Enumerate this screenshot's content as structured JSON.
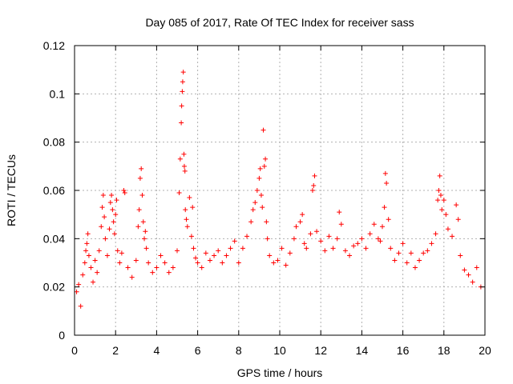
{
  "chart_data": {
    "type": "scatter",
    "title": "Day 085 of 2017, Rate Of TEC Index for receiver sass",
    "xlabel": "GPS time / hours",
    "ylabel": "ROTI / TECUs",
    "xlim": [
      0,
      20
    ],
    "ylim": [
      0,
      0.12
    ],
    "xticks": [
      0,
      2,
      4,
      6,
      8,
      10,
      12,
      14,
      16,
      18,
      20
    ],
    "yticks": [
      0,
      0.02,
      0.04,
      0.06,
      0.08,
      0.1,
      0.12
    ],
    "xtick_labels": [
      "0",
      "2",
      "4",
      "6",
      "8",
      "10",
      "12",
      "14",
      "16",
      "18",
      "20"
    ],
    "ytick_labels": [
      "0",
      "0.02",
      "0.04",
      "0.06",
      "0.08",
      "0.1",
      "0.12"
    ],
    "grid": true,
    "marker": "+",
    "color": "#ff0000",
    "series": [
      {
        "name": "ROTI",
        "points": [
          [
            0.1,
            0.018
          ],
          [
            0.2,
            0.021
          ],
          [
            0.3,
            0.012
          ],
          [
            0.4,
            0.025
          ],
          [
            0.5,
            0.03
          ],
          [
            0.55,
            0.035
          ],
          [
            0.6,
            0.038
          ],
          [
            0.65,
            0.042
          ],
          [
            0.7,
            0.033
          ],
          [
            0.8,
            0.028
          ],
          [
            0.9,
            0.022
          ],
          [
            1.0,
            0.031
          ],
          [
            1.1,
            0.026
          ],
          [
            1.2,
            0.035
          ],
          [
            1.3,
            0.045
          ],
          [
            1.35,
            0.053
          ],
          [
            1.4,
            0.058
          ],
          [
            1.45,
            0.049
          ],
          [
            1.5,
            0.04
          ],
          [
            1.6,
            0.033
          ],
          [
            1.7,
            0.044
          ],
          [
            1.75,
            0.055
          ],
          [
            1.8,
            0.058
          ],
          [
            1.85,
            0.052
          ],
          [
            1.9,
            0.047
          ],
          [
            1.95,
            0.042
          ],
          [
            2.0,
            0.05
          ],
          [
            2.05,
            0.056
          ],
          [
            2.1,
            0.035
          ],
          [
            2.2,
            0.03
          ],
          [
            2.3,
            0.034
          ],
          [
            2.4,
            0.06
          ],
          [
            2.45,
            0.059
          ],
          [
            2.6,
            0.028
          ],
          [
            2.8,
            0.024
          ],
          [
            3.0,
            0.031
          ],
          [
            3.1,
            0.045
          ],
          [
            3.15,
            0.052
          ],
          [
            3.2,
            0.065
          ],
          [
            3.25,
            0.069
          ],
          [
            3.3,
            0.058
          ],
          [
            3.35,
            0.047
          ],
          [
            3.4,
            0.04
          ],
          [
            3.45,
            0.043
          ],
          [
            3.5,
            0.036
          ],
          [
            3.6,
            0.03
          ],
          [
            3.8,
            0.026
          ],
          [
            4.0,
            0.028
          ],
          [
            4.2,
            0.033
          ],
          [
            4.4,
            0.03
          ],
          [
            4.6,
            0.026
          ],
          [
            4.8,
            0.028
          ],
          [
            5.0,
            0.035
          ],
          [
            5.1,
            0.059
          ],
          [
            5.15,
            0.073
          ],
          [
            5.2,
            0.088
          ],
          [
            5.22,
            0.095
          ],
          [
            5.25,
            0.101
          ],
          [
            5.27,
            0.105
          ],
          [
            5.3,
            0.109
          ],
          [
            5.33,
            0.075
          ],
          [
            5.35,
            0.07
          ],
          [
            5.38,
            0.068
          ],
          [
            5.4,
            0.052
          ],
          [
            5.45,
            0.048
          ],
          [
            5.5,
            0.045
          ],
          [
            5.6,
            0.057
          ],
          [
            5.7,
            0.041
          ],
          [
            5.75,
            0.053
          ],
          [
            5.8,
            0.036
          ],
          [
            5.9,
            0.032
          ],
          [
            6.0,
            0.03
          ],
          [
            6.2,
            0.028
          ],
          [
            6.4,
            0.034
          ],
          [
            6.6,
            0.031
          ],
          [
            6.8,
            0.033
          ],
          [
            7.0,
            0.035
          ],
          [
            7.2,
            0.03
          ],
          [
            7.4,
            0.033
          ],
          [
            7.6,
            0.036
          ],
          [
            7.8,
            0.039
          ],
          [
            8.0,
            0.03
          ],
          [
            8.2,
            0.036
          ],
          [
            8.4,
            0.041
          ],
          [
            8.6,
            0.047
          ],
          [
            8.7,
            0.052
          ],
          [
            8.8,
            0.055
          ],
          [
            8.9,
            0.06
          ],
          [
            9.0,
            0.065
          ],
          [
            9.05,
            0.069
          ],
          [
            9.1,
            0.058
          ],
          [
            9.15,
            0.053
          ],
          [
            9.2,
            0.085
          ],
          [
            9.25,
            0.07
          ],
          [
            9.3,
            0.073
          ],
          [
            9.35,
            0.047
          ],
          [
            9.4,
            0.04
          ],
          [
            9.5,
            0.033
          ],
          [
            9.7,
            0.03
          ],
          [
            9.9,
            0.031
          ],
          [
            10.1,
            0.036
          ],
          [
            10.3,
            0.029
          ],
          [
            10.5,
            0.034
          ],
          [
            10.7,
            0.04
          ],
          [
            10.8,
            0.045
          ],
          [
            11.0,
            0.047
          ],
          [
            11.1,
            0.05
          ],
          [
            11.2,
            0.038
          ],
          [
            11.3,
            0.036
          ],
          [
            11.5,
            0.042
          ],
          [
            11.6,
            0.06
          ],
          [
            11.65,
            0.062
          ],
          [
            11.7,
            0.066
          ],
          [
            11.8,
            0.043
          ],
          [
            12.0,
            0.039
          ],
          [
            12.2,
            0.035
          ],
          [
            12.4,
            0.041
          ],
          [
            12.6,
            0.036
          ],
          [
            12.8,
            0.04
          ],
          [
            12.9,
            0.051
          ],
          [
            13.0,
            0.046
          ],
          [
            13.2,
            0.035
          ],
          [
            13.4,
            0.033
          ],
          [
            13.6,
            0.037
          ],
          [
            13.8,
            0.038
          ],
          [
            14.0,
            0.04
          ],
          [
            14.2,
            0.036
          ],
          [
            14.4,
            0.042
          ],
          [
            14.6,
            0.046
          ],
          [
            14.8,
            0.04
          ],
          [
            14.9,
            0.039
          ],
          [
            15.0,
            0.045
          ],
          [
            15.1,
            0.053
          ],
          [
            15.15,
            0.067
          ],
          [
            15.2,
            0.063
          ],
          [
            15.3,
            0.048
          ],
          [
            15.4,
            0.036
          ],
          [
            15.6,
            0.031
          ],
          [
            15.8,
            0.034
          ],
          [
            16.0,
            0.038
          ],
          [
            16.2,
            0.03
          ],
          [
            16.4,
            0.034
          ],
          [
            16.6,
            0.028
          ],
          [
            16.8,
            0.031
          ],
          [
            17.0,
            0.034
          ],
          [
            17.2,
            0.035
          ],
          [
            17.4,
            0.038
          ],
          [
            17.6,
            0.042
          ],
          [
            17.7,
            0.056
          ],
          [
            17.75,
            0.06
          ],
          [
            17.8,
            0.066
          ],
          [
            17.85,
            0.058
          ],
          [
            17.9,
            0.052
          ],
          [
            18.0,
            0.056
          ],
          [
            18.1,
            0.05
          ],
          [
            18.2,
            0.044
          ],
          [
            18.4,
            0.041
          ],
          [
            18.6,
            0.054
          ],
          [
            18.7,
            0.048
          ],
          [
            18.8,
            0.033
          ],
          [
            19.0,
            0.027
          ],
          [
            19.2,
            0.025
          ],
          [
            19.4,
            0.022
          ],
          [
            19.6,
            0.028
          ],
          [
            19.8,
            0.02
          ]
        ]
      }
    ]
  }
}
